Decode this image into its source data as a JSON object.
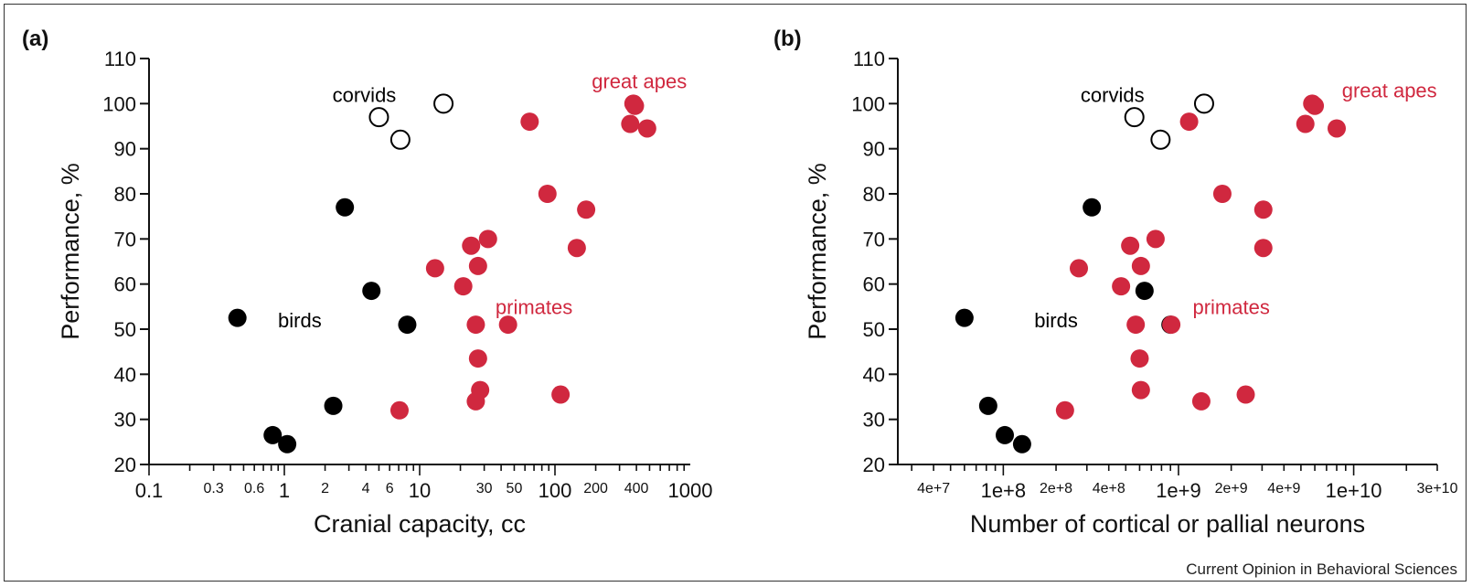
{
  "source_credit": "Current Opinion in Behavioral Sciences",
  "colors": {
    "primate": "#d0283f",
    "bird": "#000000",
    "corvid_fill": "#ffffff",
    "axis": "#111111"
  },
  "chart_data": [
    {
      "type": "scatter",
      "panel_label": "(a)",
      "xlabel": "Cranial capacity, cc",
      "ylabel": "Performance, %",
      "xscale": "log",
      "xlim": [
        0.1,
        1000
      ],
      "ylim": [
        20,
        110
      ],
      "xticks": [
        {
          "v": 0.1,
          "label": "0.1",
          "size": "major"
        },
        {
          "v": 0.3,
          "label": "0.3",
          "size": "minor"
        },
        {
          "v": 0.6,
          "label": "0.6",
          "size": "minor"
        },
        {
          "v": 1,
          "label": "1",
          "size": "major"
        },
        {
          "v": 2,
          "label": "2",
          "size": "minor"
        },
        {
          "v": 4,
          "label": "4",
          "size": "minor"
        },
        {
          "v": 6,
          "label": "6",
          "size": "minor"
        },
        {
          "v": 10,
          "label": "10",
          "size": "major"
        },
        {
          "v": 30,
          "label": "30",
          "size": "minor"
        },
        {
          "v": 50,
          "label": "50",
          "size": "minor"
        },
        {
          "v": 100,
          "label": "100",
          "size": "major"
        },
        {
          "v": 200,
          "label": "200",
          "size": "minor"
        },
        {
          "v": 400,
          "label": "400",
          "size": "minor"
        },
        {
          "v": 1000,
          "label": "1000",
          "size": "major"
        }
      ],
      "yticks": [
        20,
        30,
        40,
        50,
        60,
        70,
        80,
        90,
        100,
        110
      ],
      "annotations": [
        {
          "text": "corvids",
          "x": 3.9,
          "y": 102,
          "color": "#000000"
        },
        {
          "text": "great apes",
          "x": 420,
          "y": 105,
          "color": "#d0283f"
        },
        {
          "text": "birds",
          "x": 1.3,
          "y": 52,
          "color": "#000000"
        },
        {
          "text": "primates",
          "x": 70,
          "y": 55,
          "color": "#d0283f"
        }
      ],
      "series": [
        {
          "group": "corvids",
          "style": "open",
          "points": [
            [
              15,
              100
            ],
            [
              5,
              97
            ],
            [
              7.2,
              92
            ]
          ]
        },
        {
          "group": "birds",
          "style": "black",
          "points": [
            [
              0.45,
              52.5
            ],
            [
              0.82,
              26.5
            ],
            [
              1.05,
              24.5
            ],
            [
              2.3,
              33
            ],
            [
              2.8,
              77
            ],
            [
              4.4,
              58.5
            ],
            [
              8.1,
              51
            ]
          ]
        },
        {
          "group": "primates",
          "style": "red",
          "points": [
            [
              380,
              100
            ],
            [
              390,
              99.5
            ],
            [
              360,
              95.5
            ],
            [
              480,
              94.5
            ],
            [
              65,
              96
            ],
            [
              88,
              80
            ],
            [
              170,
              76.5
            ],
            [
              145,
              68
            ],
            [
              32,
              70
            ],
            [
              24,
              68.5
            ],
            [
              27,
              64
            ],
            [
              13,
              63.5
            ],
            [
              21,
              59.5
            ],
            [
              26,
              51
            ],
            [
              45,
              51
            ],
            [
              27,
              43.5
            ],
            [
              28,
              36.5
            ],
            [
              110,
              35.5
            ],
            [
              26,
              34
            ],
            [
              7.1,
              32
            ]
          ]
        }
      ]
    },
    {
      "type": "scatter",
      "panel_label": "(b)",
      "xlabel": "Number of cortical or pallial neurons",
      "ylabel": "Performance, %",
      "xscale": "log",
      "xlim": [
        25000000,
        30000000000
      ],
      "ylim": [
        20,
        110
      ],
      "xticks": [
        {
          "v": 40000000,
          "label": "4e+7",
          "size": "minor"
        },
        {
          "v": 100000000,
          "label": "1e+8",
          "size": "major"
        },
        {
          "v": 200000000,
          "label": "2e+8",
          "size": "minor"
        },
        {
          "v": 400000000,
          "label": "4e+8",
          "size": "minor"
        },
        {
          "v": 1000000000,
          "label": "1e+9",
          "size": "major"
        },
        {
          "v": 2000000000,
          "label": "2e+9",
          "size": "minor"
        },
        {
          "v": 4000000000,
          "label": "4e+9",
          "size": "minor"
        },
        {
          "v": 10000000000,
          "label": "1e+10",
          "size": "major"
        },
        {
          "v": 30000000000,
          "label": "3e+10",
          "size": "minor"
        }
      ],
      "yticks": [
        20,
        30,
        40,
        50,
        60,
        70,
        80,
        90,
        100,
        110
      ],
      "annotations": [
        {
          "text": "corvids",
          "x": 420000000,
          "y": 102,
          "color": "#000000"
        },
        {
          "text": "great apes",
          "x": 16000000000,
          "y": 103,
          "color": "#d0283f"
        },
        {
          "text": "birds",
          "x": 200000000,
          "y": 52,
          "color": "#000000"
        },
        {
          "text": "primates",
          "x": 2000000000,
          "y": 55,
          "color": "#d0283f"
        }
      ],
      "series": [
        {
          "group": "corvids",
          "style": "open",
          "points": [
            [
              1400000000,
              100
            ],
            [
              560000000,
              97
            ],
            [
              790000000,
              92
            ]
          ]
        },
        {
          "group": "birds",
          "style": "black",
          "points": [
            [
              60000000,
              52.5
            ],
            [
              102000000,
              26.5
            ],
            [
              128000000,
              24.5
            ],
            [
              82000000,
              33
            ],
            [
              320000000,
              77
            ],
            [
              640000000,
              58.5
            ],
            [
              900000000,
              51
            ]
          ]
        },
        {
          "group": "primates",
          "style": "red",
          "points": [
            [
              5800000000,
              100
            ],
            [
              6000000000,
              99.5
            ],
            [
              5300000000,
              95.5
            ],
            [
              8000000000,
              94.5
            ],
            [
              1150000000,
              96
            ],
            [
              1780000000,
              80
            ],
            [
              3050000000,
              76.5
            ],
            [
              3050000000,
              68
            ],
            [
              740000000,
              70
            ],
            [
              530000000,
              68.5
            ],
            [
              610000000,
              64
            ],
            [
              270000000,
              63.5
            ],
            [
              470000000,
              59.5
            ],
            [
              570000000,
              51
            ],
            [
              910000000,
              51
            ],
            [
              600000000,
              43.5
            ],
            [
              610000000,
              36.5
            ],
            [
              2420000000,
              35.5
            ],
            [
              1350000000,
              34
            ],
            [
              225000000,
              32
            ]
          ]
        }
      ]
    }
  ]
}
